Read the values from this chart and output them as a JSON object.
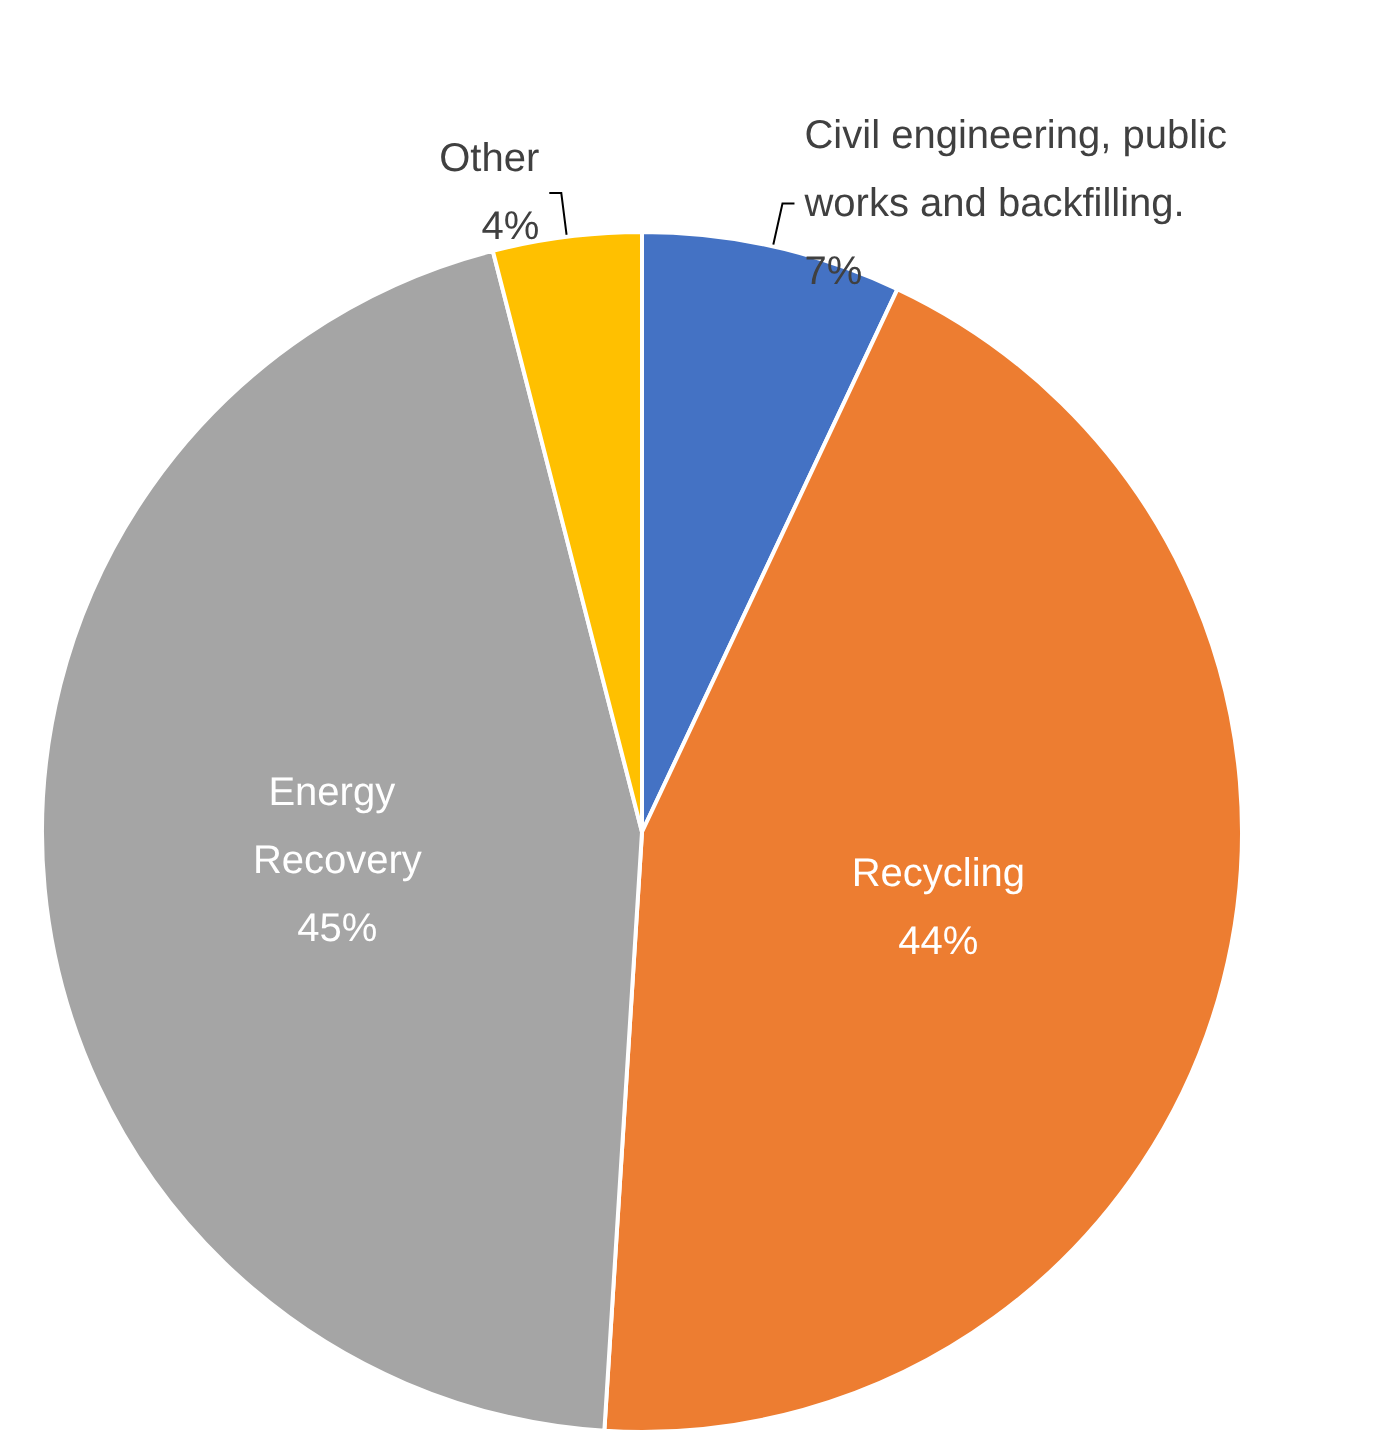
{
  "chart_data": {
    "type": "pie",
    "categories": [
      "Civil engineering, public works and backfilling.",
      "Recycling",
      "Energy Recovery",
      "Other"
    ],
    "values": [
      7,
      44,
      45,
      4
    ],
    "colors": [
      "#4472c4",
      "#ed7d31",
      "#a5a5a5",
      "#ffc000"
    ],
    "value_labels": [
      "7%",
      "44%",
      "45%",
      "4%"
    ],
    "legend": false
  }
}
